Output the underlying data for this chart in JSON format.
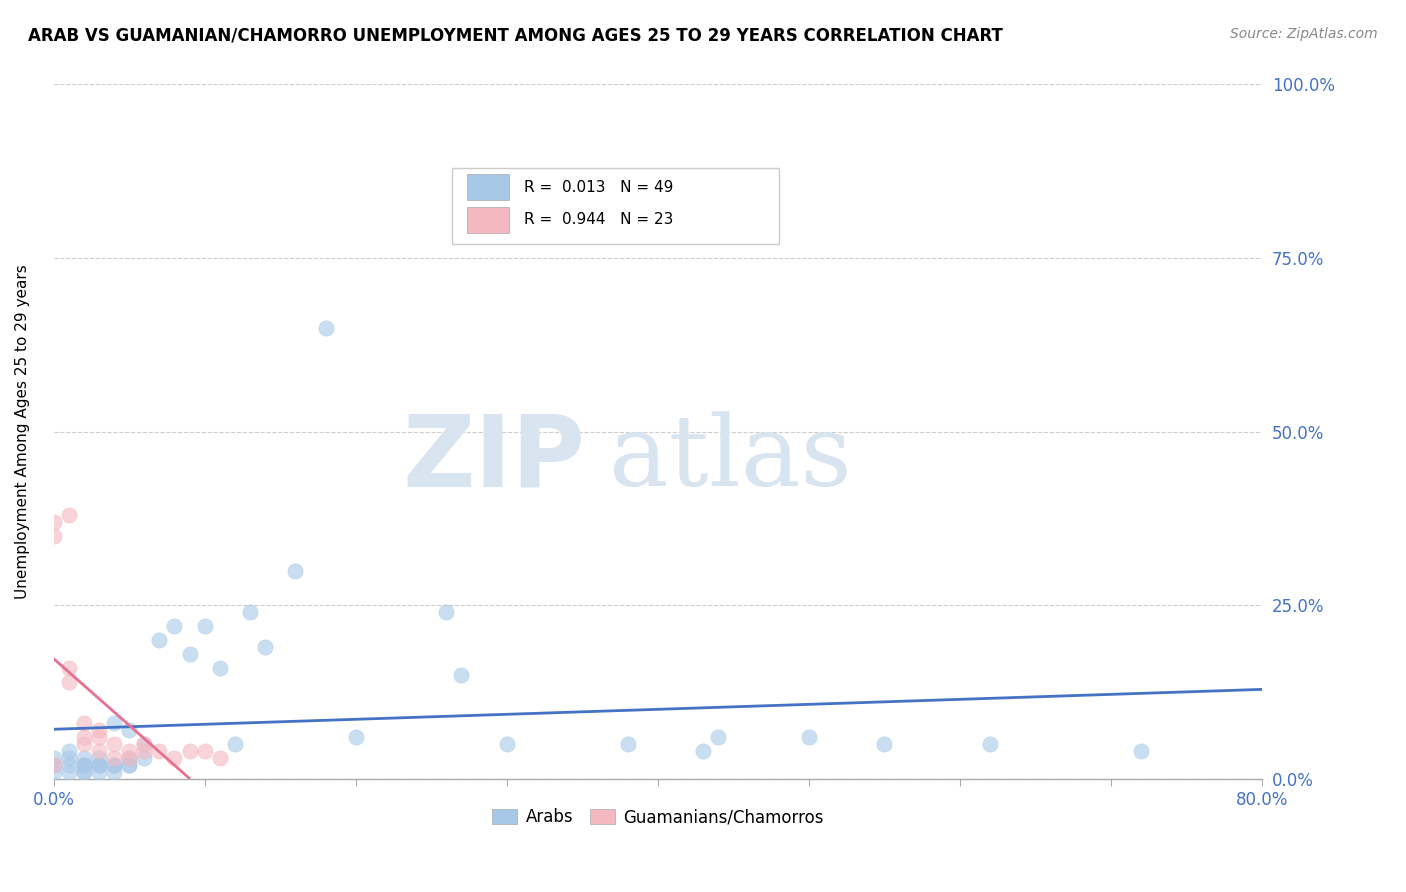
{
  "title": "ARAB VS GUAMANIAN/CHAMORRO UNEMPLOYMENT AMONG AGES 25 TO 29 YEARS CORRELATION CHART",
  "source": "Source: ZipAtlas.com",
  "xlim": [
    0.0,
    0.8
  ],
  "ylim": [
    0.0,
    1.0
  ],
  "arab_R": 0.013,
  "arab_N": 49,
  "guam_R": 0.944,
  "guam_N": 23,
  "arab_color": "#a8c8e8",
  "guam_color": "#f4b8c0",
  "arab_line_color": "#4472c4",
  "guam_line_color": "#e87090",
  "watermark_zip": "ZIP",
  "watermark_atlas": "atlas",
  "watermark_color": "#d8e4f0",
  "arab_scatter_x": [
    0.0,
    0.0,
    0.0,
    0.01,
    0.01,
    0.01,
    0.01,
    0.02,
    0.02,
    0.02,
    0.02,
    0.02,
    0.02,
    0.03,
    0.03,
    0.03,
    0.03,
    0.03,
    0.04,
    0.04,
    0.04,
    0.04,
    0.05,
    0.05,
    0.05,
    0.05,
    0.06,
    0.06,
    0.07,
    0.08,
    0.09,
    0.1,
    0.11,
    0.12,
    0.13,
    0.14,
    0.16,
    0.18,
    0.2,
    0.26,
    0.27,
    0.3,
    0.38,
    0.43,
    0.44,
    0.5,
    0.55,
    0.62,
    0.72
  ],
  "arab_scatter_y": [
    0.02,
    0.03,
    0.01,
    0.02,
    0.03,
    0.01,
    0.04,
    0.02,
    0.01,
    0.03,
    0.02,
    0.01,
    0.02,
    0.02,
    0.03,
    0.01,
    0.02,
    0.02,
    0.01,
    0.02,
    0.02,
    0.08,
    0.02,
    0.07,
    0.03,
    0.02,
    0.05,
    0.03,
    0.2,
    0.22,
    0.18,
    0.22,
    0.16,
    0.05,
    0.24,
    0.19,
    0.3,
    0.65,
    0.06,
    0.24,
    0.15,
    0.05,
    0.05,
    0.04,
    0.06,
    0.06,
    0.05,
    0.05,
    0.04
  ],
  "guam_scatter_x": [
    0.0,
    0.0,
    0.0,
    0.01,
    0.01,
    0.01,
    0.02,
    0.02,
    0.02,
    0.03,
    0.03,
    0.03,
    0.04,
    0.04,
    0.05,
    0.05,
    0.06,
    0.06,
    0.07,
    0.08,
    0.09,
    0.1,
    0.11
  ],
  "guam_scatter_y": [
    0.02,
    0.35,
    0.37,
    0.14,
    0.16,
    0.38,
    0.05,
    0.06,
    0.08,
    0.04,
    0.06,
    0.07,
    0.03,
    0.05,
    0.03,
    0.04,
    0.04,
    0.05,
    0.04,
    0.03,
    0.04,
    0.04,
    0.03
  ]
}
